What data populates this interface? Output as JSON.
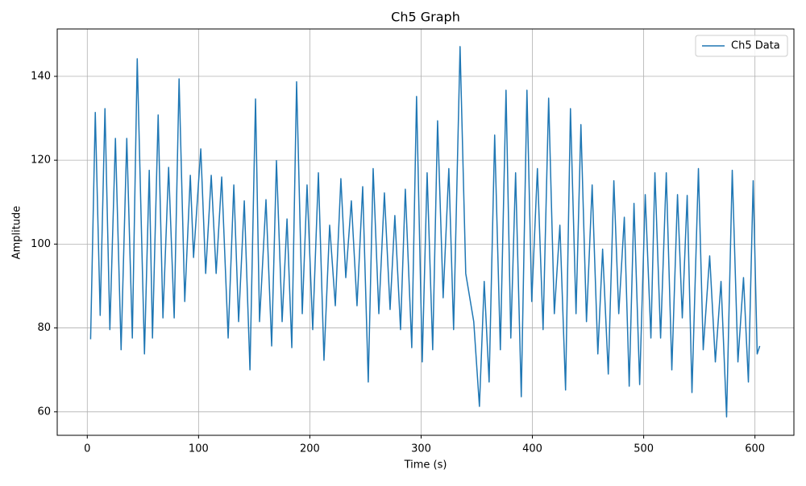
{
  "chart_data": {
    "type": "line",
    "title": "Ch5 Graph",
    "x_label": "Time (s)",
    "y_label": "Amplitude",
    "x": [
      3.0,
      7.2,
      11.6,
      15.9,
      20.3,
      25.3,
      30.4,
      35.5,
      40.5,
      44.9,
      51.4,
      55.7,
      58.6,
      63.7,
      68.0,
      73.1,
      78.1,
      82.5,
      87.6,
      92.6,
      95.5,
      102.0,
      106.4,
      111.4,
      115.8,
      120.8,
      126.6,
      131.7,
      136.0,
      141.1,
      146.2,
      151.2,
      154.8,
      160.6,
      165.7,
      170.0,
      175.1,
      179.5,
      183.8,
      188.1,
      193.2,
      197.5,
      202.6,
      207.7,
      212.7,
      217.8,
      222.9,
      227.9,
      232.3,
      237.3,
      242.4,
      247.5,
      252.5,
      256.9,
      262.0,
      267.0,
      272.1,
      276.4,
      281.5,
      285.8,
      291.6,
      295.9,
      301.0,
      305.4,
      310.4,
      314.8,
      319.8,
      324.9,
      329.2,
      335.0,
      340.1,
      347.3,
      352.4,
      356.7,
      361.1,
      366.1,
      371.2,
      376.3,
      380.6,
      384.9,
      390.0,
      395.1,
      399.4,
      404.5,
      409.6,
      414.6,
      419.7,
      424.7,
      429.8,
      434.2,
      439.2,
      443.6,
      448.6,
      453.7,
      458.8,
      463.1,
      468.2,
      473.2,
      477.6,
      482.6,
      487.0,
      491.3,
      496.4,
      501.4,
      506.5,
      510.1,
      515.2,
      520.3,
      525.3,
      530.4,
      534.7,
      539.1,
      543.4,
      549.2,
      553.5,
      559.3,
      564.4,
      569.5,
      574.5,
      579.6,
      584.7,
      589.7,
      594.1,
      598.4,
      602.0,
      604.3
    ],
    "series": [
      {
        "name": "Ch5 Data",
        "color": "#1f77b4",
        "values": [
          77.3,
          131.4,
          83.0,
          132.3,
          79.6,
          125.2,
          74.8,
          125.2,
          77.6,
          144.2,
          73.8,
          117.6,
          77.6,
          130.8,
          82.4,
          118.3,
          82.4,
          139.4,
          86.3,
          116.4,
          96.8,
          122.7,
          93.0,
          116.4,
          93.0,
          116.0,
          77.6,
          114.1,
          81.5,
          110.3,
          70.0,
          134.6,
          81.5,
          110.6,
          75.7,
          119.9,
          81.5,
          106.0,
          75.3,
          138.7,
          83.4,
          114.1,
          79.6,
          117.0,
          72.3,
          104.5,
          85.3,
          115.6,
          92.0,
          110.3,
          85.3,
          113.7,
          67.1,
          118.0,
          83.4,
          112.2,
          84.4,
          106.8,
          79.6,
          113.1,
          75.3,
          135.2,
          71.9,
          117.0,
          74.8,
          129.4,
          87.2,
          118.0,
          79.6,
          147.1,
          93.0,
          81.5,
          61.3,
          91.1,
          67.1,
          126.0,
          74.8,
          136.7,
          77.6,
          117.0,
          63.6,
          136.7,
          86.3,
          118.0,
          79.6,
          134.8,
          83.4,
          104.5,
          65.2,
          132.3,
          83.4,
          128.5,
          81.5,
          114.1,
          73.8,
          98.8,
          69.0,
          115.1,
          83.4,
          106.4,
          66.1,
          109.7,
          66.5,
          111.8,
          77.6,
          117.0,
          77.6,
          117.0,
          70.0,
          111.8,
          82.4,
          111.6,
          64.6,
          118.0,
          74.8,
          97.2,
          71.9,
          91.1,
          58.8,
          117.6,
          71.9,
          92.0,
          67.1,
          115.1,
          73.8,
          75.7
        ]
      }
    ],
    "xlim": [
      -27,
      635
    ],
    "ylim": [
      54.4,
      151.3
    ],
    "xticks": [
      0,
      100,
      200,
      300,
      400,
      500,
      600
    ],
    "yticks": [
      60,
      80,
      100,
      120,
      140
    ],
    "grid": true,
    "legend": "upper right"
  }
}
